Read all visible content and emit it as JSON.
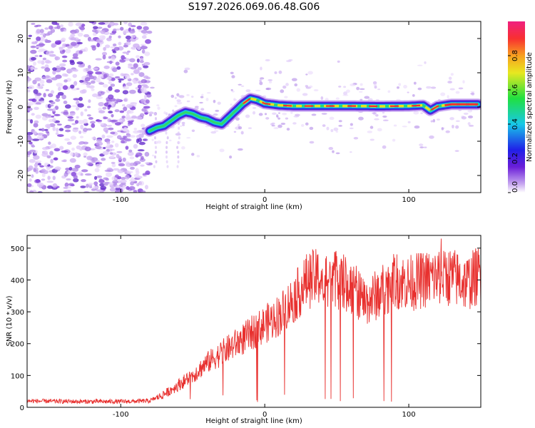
{
  "figure_title": "S197.2026.069.06.48.G06",
  "chart_data": [
    {
      "type": "heatmap",
      "xlabel": "Height of straight line (km)",
      "ylabel": "Frequency (Hz)",
      "xlim": [
        -165,
        150
      ],
      "ylim": [
        -25,
        25
      ],
      "xticks": [
        -100,
        0,
        100
      ],
      "yticks": [
        -20,
        -10,
        0,
        10,
        20
      ],
      "colorbar": {
        "label": "Normalized spectral amplitude",
        "range": [
          0,
          1
        ],
        "ticks": [
          "0.0",
          "0.2",
          "0.4",
          "0.6",
          "0.8"
        ]
      },
      "ridge": {
        "description": "dominant frequency track",
        "x": [
          -80,
          -75,
          -70,
          -65,
          -60,
          -55,
          -50,
          -45,
          -40,
          -35,
          -30,
          -25,
          -20,
          -15,
          -10,
          -5,
          0,
          10,
          20,
          40,
          60,
          80,
          100,
          110,
          115,
          120,
          130,
          148
        ],
        "y": [
          -7,
          -6,
          -5.5,
          -4,
          -2.5,
          -1.5,
          -2,
          -3,
          -3.5,
          -4.5,
          -5,
          -3,
          -1,
          1,
          2.5,
          2,
          1,
          0.5,
          0.3,
          0.3,
          0.3,
          0.2,
          0.3,
          0.5,
          -1,
          0.2,
          0.8,
          0.8
        ]
      },
      "noise_region_x": [
        -165,
        -80
      ]
    },
    {
      "type": "line",
      "xlabel": "Height of straight line (km)",
      "ylabel": "SNR (10 * v/v)",
      "xlim": [
        -165,
        150
      ],
      "ylim": [
        0,
        540
      ],
      "xticks": [
        -100,
        0,
        100
      ],
      "yticks": [
        0,
        100,
        200,
        300,
        400,
        500
      ],
      "color": "#e8302e",
      "envelope": {
        "x": [
          -165,
          -130,
          -100,
          -80,
          -70,
          -60,
          -50,
          -40,
          -30,
          -20,
          -10,
          0,
          10,
          20,
          30,
          40,
          50,
          60,
          70,
          80,
          90,
          100,
          110,
          120,
          130,
          140,
          150
        ],
        "y": [
          20,
          18,
          18,
          20,
          40,
          70,
          100,
          140,
          170,
          200,
          230,
          260,
          290,
          340,
          400,
          410,
          400,
          380,
          330,
          360,
          400,
          390,
          400,
          410,
          410,
          390,
          420
        ]
      }
    }
  ]
}
